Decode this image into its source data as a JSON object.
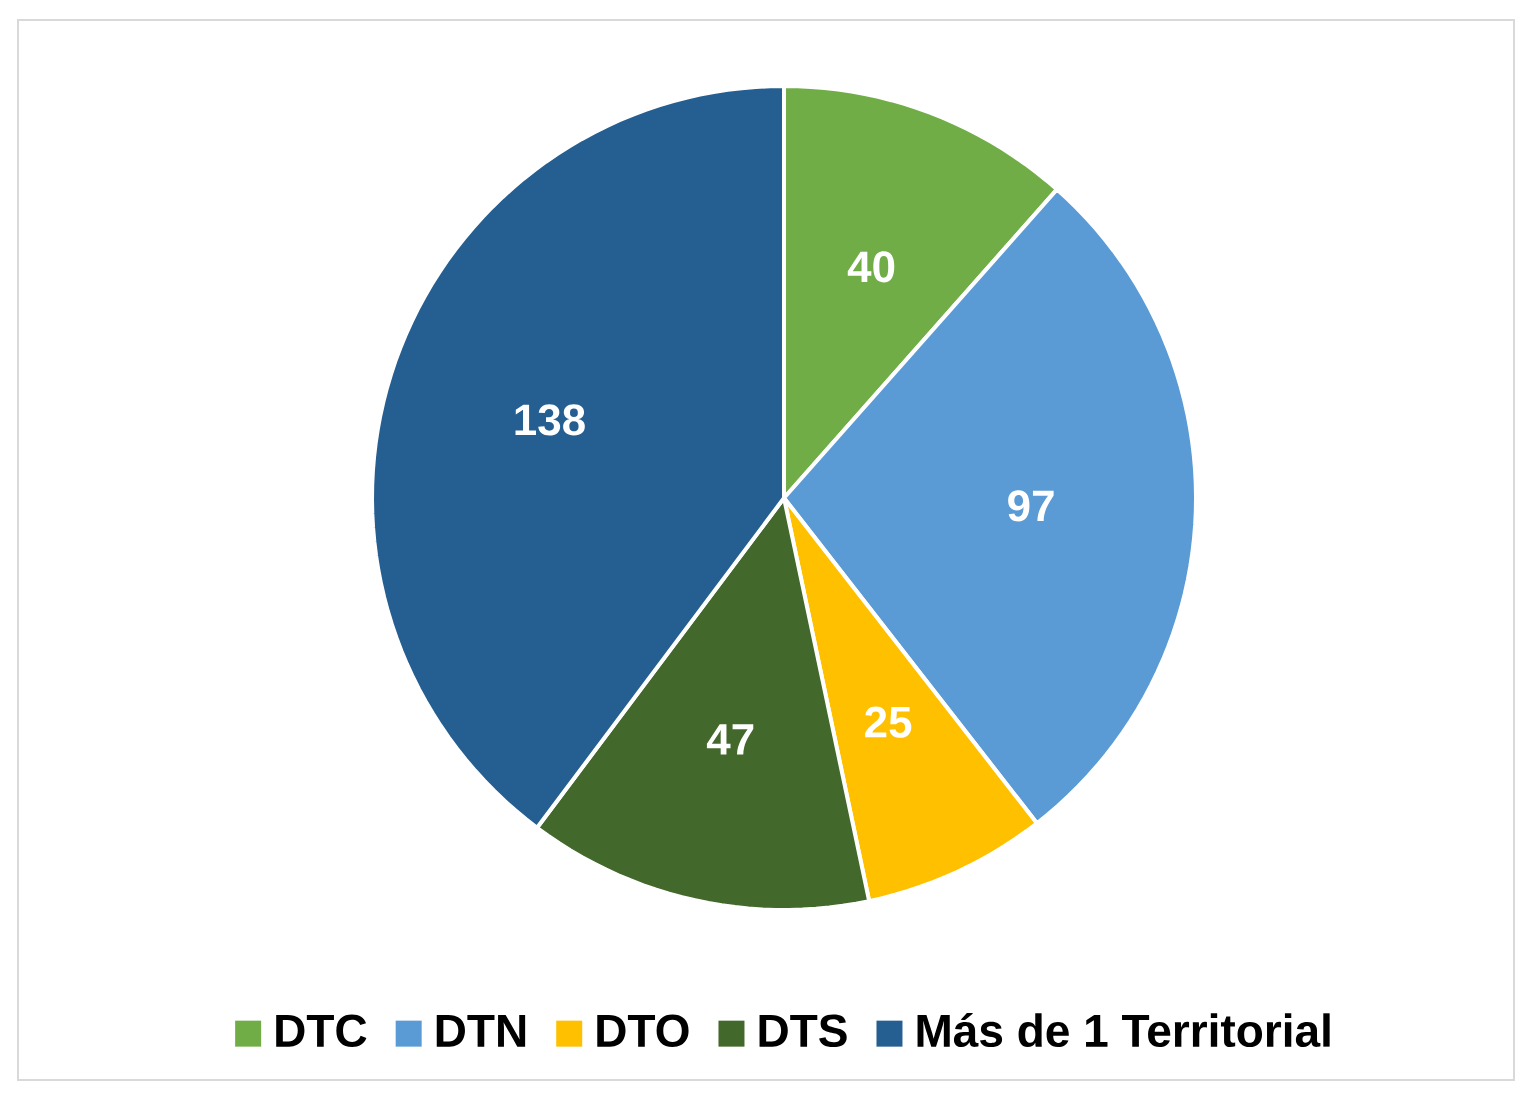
{
  "chart_data": {
    "type": "pie",
    "categories": [
      "DTC",
      "DTN",
      "DTO",
      "DTS",
      "Más de  1 Territorial"
    ],
    "values": [
      40,
      97,
      25,
      47,
      138
    ],
    "colors": [
      "#70ad47",
      "#5b9bd5",
      "#ffc000",
      "#43682b",
      "#255e91"
    ],
    "data_labels": true,
    "legend": "bottom"
  }
}
